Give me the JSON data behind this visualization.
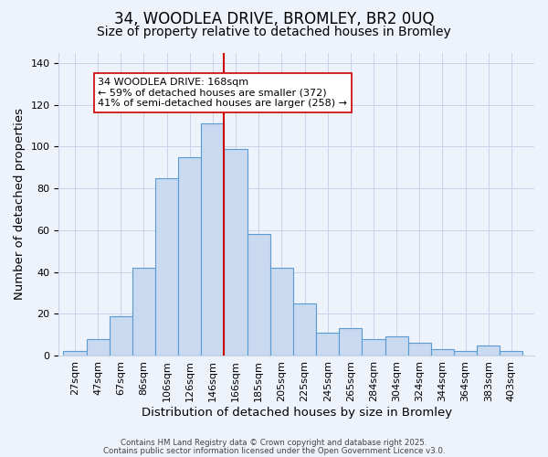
{
  "title": "34, WOODLEA DRIVE, BROMLEY, BR2 0UQ",
  "subtitle": "Size of property relative to detached houses in Bromley",
  "xlabel": "Distribution of detached houses by size in Bromley",
  "ylabel": "Number of detached properties",
  "bar_values": [
    2,
    8,
    19,
    42,
    85,
    95,
    111,
    99,
    58,
    42,
    25,
    11,
    13,
    8,
    9,
    6,
    3,
    2,
    5,
    2
  ],
  "bar_labels": [
    "27sqm",
    "47sqm",
    "67sqm",
    "86sqm",
    "106sqm",
    "126sqm",
    "146sqm",
    "166sqm",
    "185sqm",
    "205sqm",
    "225sqm",
    "245sqm",
    "265sqm",
    "284sqm",
    "304sqm",
    "324sqm",
    "344sqm",
    "364sqm",
    "383sqm",
    "403sqm"
  ],
  "bar_color": "#c9d9f0",
  "bar_edge_color": "#5b9bd5",
  "vline_x": 7,
  "vline_color": "#cc0000",
  "ylim": [
    0,
    145
  ],
  "yticks": [
    0,
    20,
    40,
    60,
    80,
    100,
    120,
    140
  ],
  "annotation_text": "34 WOODLEA DRIVE: 168sqm\n← 59% of detached houses are smaller (372)\n41% of semi-detached houses are larger (258) →",
  "annotation_box_color": "#ffffff",
  "annotation_box_edge": "#cc0000",
  "footer1": "Contains HM Land Registry data © Crown copyright and database right 2025.",
  "footer2": "Contains public sector information licensed under the Open Government Licence v3.0.",
  "bg_color": "#eef2fb",
  "grid_color": "#c8d4e8",
  "title_fontsize": 12,
  "subtitle_fontsize": 10,
  "axis_label_fontsize": 9.5,
  "tick_fontsize": 8,
  "annotation_fontsize": 8
}
